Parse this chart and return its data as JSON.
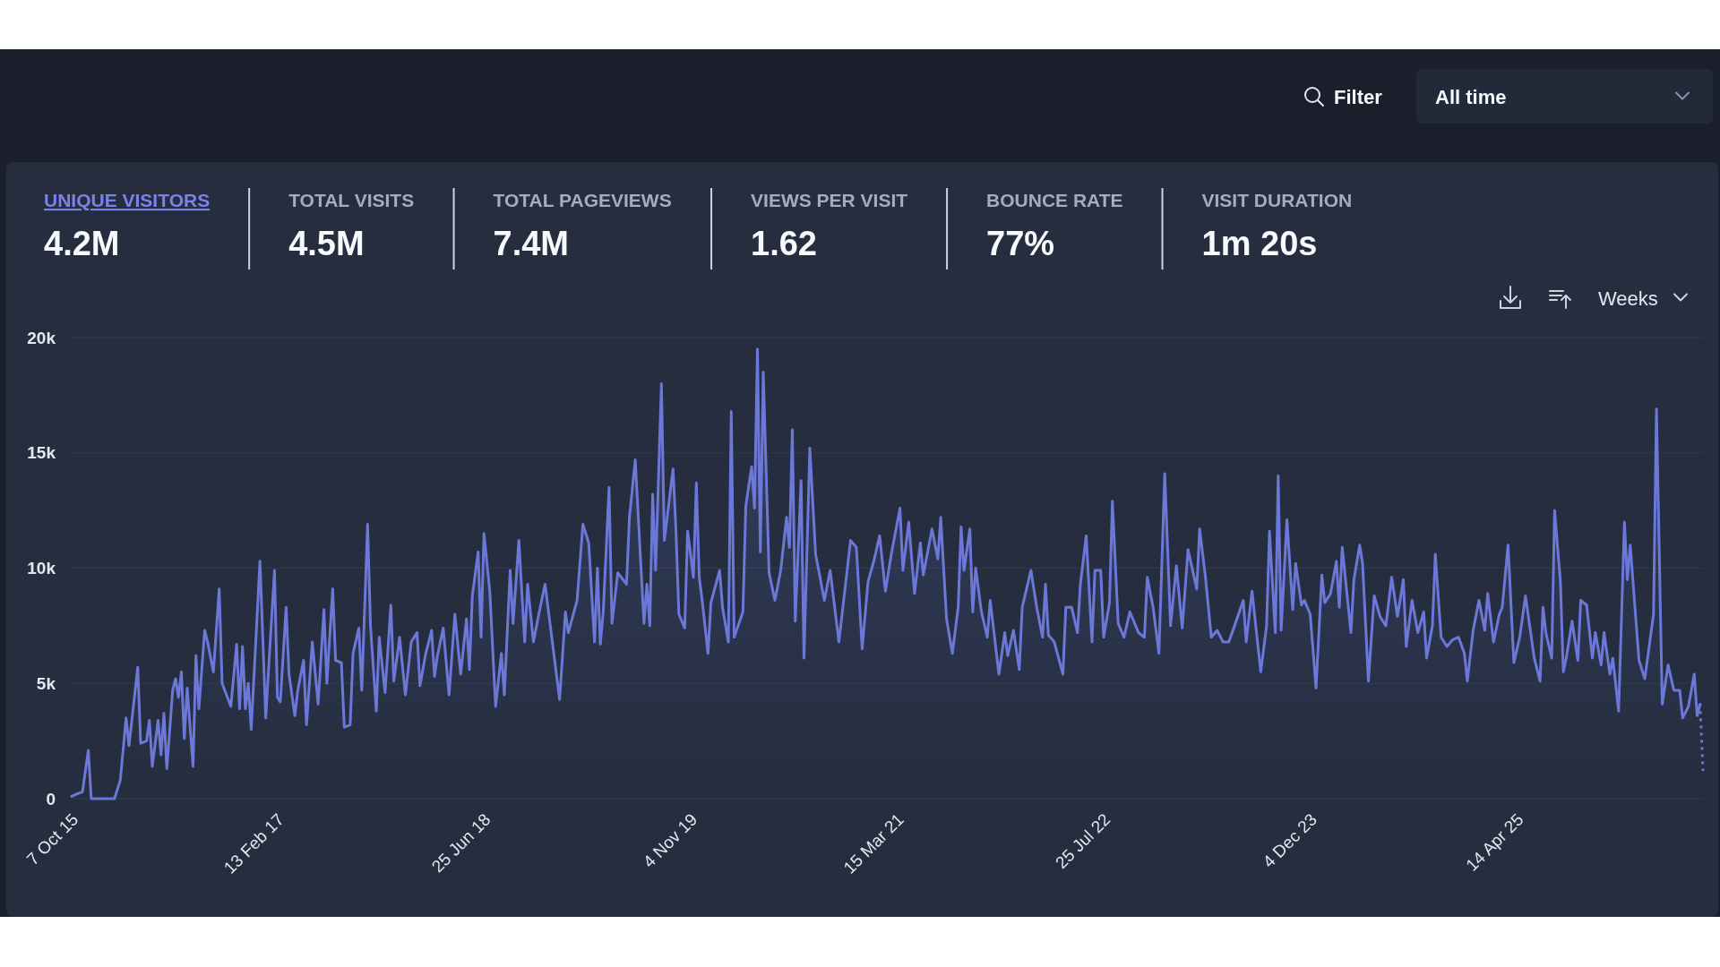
{
  "chart_data": [
    {
      "type": "other",
      "categories": [
        "UNIQUE VISITORS",
        "TOTAL VISITS",
        "TOTAL PAGEVIEWS",
        "VIEWS PER VISIT",
        "BOUNCE RATE",
        "VISIT DURATION"
      ],
      "value_labels": [
        "4.2M",
        "4.5M",
        "7.4M",
        "1.62",
        "77%",
        "1m 20s"
      ],
      "colors": [
        "#7b83eb",
        "#a0aec0",
        "#a0aec0",
        "#a0aec0",
        "#a0aec0",
        "#a0aec0"
      ],
      "annotations": [
        "Filter",
        "All time"
      ]
    },
    {
      "type": "area",
      "xlim": [
        "2015-10-07",
        "2026-07-06"
      ],
      "ylim": [
        0,
        20000
      ],
      "xticks": [
        {
          "value": "2015-10-07",
          "label": "7 Oct 15"
        },
        {
          "value": "2017-02-13",
          "label": "13 Feb 17"
        },
        {
          "value": "2018-06-25",
          "label": "25 Jun 18"
        },
        {
          "value": "2019-11-04",
          "label": "4 Nov 19"
        },
        {
          "value": "2021-03-15",
          "label": "15 Mar 21"
        },
        {
          "value": "2022-07-25",
          "label": "25 Jul 22"
        },
        {
          "value": "2023-12-04",
          "label": "4 Dec 23"
        },
        {
          "value": "2025-04-14",
          "label": "14 Apr 25"
        }
      ],
      "yticks": [
        0,
        {
          "value": 5000,
          "label": "5k"
        },
        {
          "value": 10000,
          "label": "10k"
        },
        {
          "value": 15000,
          "label": "15k"
        },
        {
          "value": 20000,
          "label": "20k"
        }
      ],
      "grid": "y",
      "annotations": [
        "Weeks"
      ],
      "series": [
        {
          "color": "#6b78d8",
          "x": [
            "2015-10-07",
            "2015-10-19",
            "2015-11-02",
            "2015-11-16",
            "2015-11-23",
            "2016-01-18",
            "2016-02-01",
            "2016-02-15",
            "2016-02-22",
            "2016-03-14",
            "2016-03-21",
            "2016-04-04",
            "2016-04-11",
            "2016-04-18",
            "2016-05-02",
            "2016-05-09",
            "2016-05-16",
            "2016-05-23",
            "2016-06-06",
            "2016-06-13",
            "2016-06-20",
            "2016-06-27",
            "2016-07-04",
            "2016-07-11",
            "2016-07-25",
            "2016-08-01",
            "2016-08-08",
            "2016-08-22",
            "2016-08-29",
            "2016-09-12",
            "2016-09-26",
            "2016-10-03",
            "2016-10-24",
            "2016-11-07",
            "2016-11-14",
            "2016-11-21",
            "2016-11-28",
            "2016-12-05",
            "2016-12-12",
            "2017-01-02",
            "2017-01-16",
            "2017-01-23",
            "2017-02-06",
            "2017-02-13",
            "2017-02-20",
            "2017-03-06",
            "2017-03-13",
            "2017-03-27",
            "2017-04-03",
            "2017-04-17",
            "2017-04-24",
            "2017-05-08",
            "2017-05-22",
            "2017-06-05",
            "2017-06-12",
            "2017-06-26",
            "2017-07-03",
            "2017-07-17",
            "2017-07-24",
            "2017-08-07",
            "2017-08-14",
            "2017-08-28",
            "2017-09-04",
            "2017-09-18",
            "2017-09-25",
            "2017-10-09",
            "2017-10-16",
            "2017-10-30",
            "2017-11-13",
            "2017-11-20",
            "2017-12-04",
            "2017-12-18",
            "2018-01-01",
            "2018-01-15",
            "2018-01-22",
            "2018-02-05",
            "2018-02-19",
            "2018-02-26",
            "2018-03-05",
            "2018-03-19",
            "2018-04-02",
            "2018-04-16",
            "2018-04-30",
            "2018-05-14",
            "2018-05-21",
            "2018-05-28",
            "2018-06-11",
            "2018-06-18",
            "2018-06-25",
            "2018-07-09",
            "2018-07-23",
            "2018-08-06",
            "2018-08-13",
            "2018-08-27",
            "2018-09-03",
            "2018-09-17",
            "2018-10-01",
            "2018-10-08",
            "2018-10-22",
            "2018-11-05",
            "2018-11-19",
            "2018-12-10",
            "2018-12-24",
            "2019-01-07",
            "2019-01-14",
            "2019-02-04",
            "2019-02-18",
            "2019-03-04",
            "2019-03-18",
            "2019-03-25",
            "2019-04-01",
            "2019-04-08",
            "2019-04-22",
            "2019-04-29",
            "2019-05-13",
            "2019-06-03",
            "2019-06-10",
            "2019-06-24",
            "2019-07-15",
            "2019-07-22",
            "2019-07-29",
            "2019-08-05",
            "2019-08-12",
            "2019-08-26",
            "2019-09-02",
            "2019-09-23",
            "2019-09-30",
            "2019-10-07",
            "2019-10-21",
            "2019-10-28",
            "2019-11-11",
            "2019-11-18",
            "2019-11-25",
            "2019-12-02",
            "2019-12-16",
            "2019-12-23",
            "2020-01-13",
            "2020-01-20",
            "2020-02-03",
            "2020-02-10",
            "2020-02-17",
            "2020-03-09",
            "2020-03-16",
            "2020-03-30",
            "2020-04-06",
            "2020-04-13",
            "2020-04-20",
            "2020-04-27",
            "2020-05-11",
            "2020-05-25",
            "2020-06-08",
            "2020-06-22",
            "2020-06-29",
            "2020-07-06",
            "2020-07-13",
            "2020-07-27",
            "2020-08-03",
            "2020-08-17",
            "2020-08-31",
            "2020-09-21",
            "2020-10-05",
            "2020-10-26",
            "2020-11-23",
            "2020-12-07",
            "2020-12-21",
            "2021-01-04",
            "2021-01-18",
            "2021-02-01",
            "2021-02-15",
            "2021-03-01",
            "2021-03-22",
            "2021-03-29",
            "2021-04-12",
            "2021-04-26",
            "2021-05-10",
            "2021-05-17",
            "2021-06-07",
            "2021-06-21",
            "2021-06-28",
            "2021-07-12",
            "2021-07-26",
            "2021-08-09",
            "2021-08-16",
            "2021-08-23",
            "2021-09-06",
            "2021-09-13",
            "2021-09-20",
            "2021-10-04",
            "2021-10-18",
            "2021-10-25",
            "2021-11-15",
            "2021-11-29",
            "2021-12-06",
            "2021-12-20",
            "2022-01-03",
            "2022-01-10",
            "2022-01-31",
            "2022-02-14",
            "2022-02-28",
            "2022-03-07",
            "2022-03-14",
            "2022-03-28",
            "2022-04-18",
            "2022-04-25",
            "2022-05-09",
            "2022-05-23",
            "2022-05-30",
            "2022-06-13",
            "2022-06-27",
            "2022-07-04",
            "2022-07-18",
            "2022-07-25",
            "2022-08-08",
            "2022-08-15",
            "2022-08-29",
            "2022-09-12",
            "2022-09-26",
            "2022-10-17",
            "2022-10-31",
            "2022-11-07",
            "2022-11-21",
            "2022-12-05",
            "2022-12-19",
            "2023-01-02",
            "2023-01-16",
            "2023-01-30",
            "2023-02-13",
            "2023-03-06",
            "2023-03-13",
            "2023-03-27",
            "2023-04-10",
            "2023-04-24",
            "2023-05-08",
            "2023-05-22",
            "2023-06-05",
            "2023-06-26",
            "2023-07-03",
            "2023-07-17",
            "2023-08-07",
            "2023-08-21",
            "2023-08-28",
            "2023-09-11",
            "2023-09-18",
            "2023-09-25",
            "2023-10-09",
            "2023-10-23",
            "2023-10-30",
            "2023-11-13",
            "2023-11-20",
            "2023-12-04",
            "2023-12-18",
            "2024-01-01",
            "2024-01-08",
            "2024-01-22",
            "2024-02-05",
            "2024-02-12",
            "2024-02-19",
            "2024-03-11",
            "2024-03-18",
            "2024-04-01",
            "2024-04-08",
            "2024-04-22",
            "2024-05-06",
            "2024-05-20",
            "2024-06-03",
            "2024-06-17",
            "2024-07-01",
            "2024-07-15",
            "2024-07-22",
            "2024-08-05",
            "2024-08-19",
            "2024-09-02",
            "2024-09-09",
            "2024-09-23",
            "2024-09-30",
            "2024-10-14",
            "2024-10-28",
            "2024-11-11",
            "2024-11-25",
            "2024-12-09",
            "2024-12-16",
            "2024-12-30",
            "2025-01-13",
            "2025-01-27",
            "2025-02-03",
            "2025-02-17",
            "2025-03-03",
            "2025-03-10",
            "2025-03-24",
            "2025-04-07",
            "2025-04-21",
            "2025-05-05",
            "2025-05-26",
            "2025-06-09",
            "2025-06-16",
            "2025-06-23",
            "2025-07-07",
            "2025-07-14",
            "2025-07-28",
            "2025-08-04",
            "2025-08-11",
            "2025-08-25",
            "2025-09-08",
            "2025-09-15",
            "2025-09-29",
            "2025-10-13",
            "2025-10-20",
            "2025-11-03",
            "2025-11-10",
            "2025-11-24",
            "2025-12-01",
            "2025-12-15",
            "2025-12-29",
            "2026-01-05",
            "2026-01-12",
            "2026-02-02",
            "2026-02-16",
            "2026-03-09",
            "2026-03-16",
            "2026-03-30",
            "2026-04-13",
            "2026-04-27",
            "2026-05-11",
            "2026-05-18",
            "2026-06-01",
            "2026-06-15",
            "2026-06-22",
            "2026-06-29"
          ],
          "values": [
            100,
            200,
            300,
            2100,
            0,
            0,
            800,
            3500,
            2300,
            5700,
            2400,
            2500,
            3400,
            1400,
            3400,
            1900,
            3700,
            1300,
            4700,
            5200,
            4400,
            5500,
            2600,
            4800,
            1400,
            6200,
            3900,
            7300,
            6800,
            5500,
            9100,
            5000,
            4000,
            6700,
            3900,
            6600,
            3900,
            5000,
            3000,
            10300,
            3500,
            5700,
            9900,
            4400,
            4200,
            8300,
            5400,
            3600,
            4700,
            6000,
            3200,
            6800,
            4100,
            8200,
            5000,
            9100,
            6000,
            5900,
            3100,
            3200,
            6300,
            7400,
            4700,
            11900,
            7500,
            3800,
            7000,
            4600,
            8400,
            5100,
            7000,
            4500,
            6800,
            7200,
            4900,
            6300,
            7300,
            5300,
            6200,
            7400,
            4500,
            8000,
            5400,
            7800,
            5600,
            8800,
            10700,
            7000,
            11500,
            9000,
            4000,
            6300,
            4500,
            9900,
            7600,
            11200,
            6800,
            9300,
            6800,
            8100,
            9300,
            6300,
            4300,
            8100,
            7200,
            8600,
            11900,
            11100,
            6800,
            10000,
            6700,
            8100,
            13500,
            7600,
            9800,
            9300,
            12200,
            14700,
            7600,
            9300,
            7500,
            13200,
            9900,
            18000,
            11200,
            14300,
            11600,
            8000,
            7400,
            11600,
            9600,
            13700,
            9600,
            8600,
            6300,
            8500,
            9900,
            8300,
            6800,
            16800,
            7000,
            8100,
            12700,
            14400,
            12600,
            19500,
            10700,
            18500,
            9800,
            8600,
            9900,
            12200,
            10900,
            16000,
            7700,
            13800,
            6100,
            15200,
            10600,
            8600,
            9900,
            6800,
            11200,
            10900,
            6500,
            9400,
            10300,
            11400,
            9000,
            10600,
            12600,
            9900,
            12000,
            8900,
            11100,
            9700,
            11700,
            10400,
            12200,
            7800,
            6300,
            8300,
            11800,
            9900,
            11700,
            8100,
            10000,
            8100,
            7000,
            8600,
            5400,
            7200,
            6200,
            7300,
            5600,
            8300,
            9900,
            8300,
            7000,
            9300,
            7100,
            6800,
            5400,
            8300,
            8300,
            7200,
            9300,
            11400,
            6800,
            9900,
            9900,
            7000,
            8500,
            12900,
            7600,
            7000,
            8100,
            7200,
            7000,
            9600,
            8300,
            6300,
            14100,
            7500,
            10100,
            7400,
            10800,
            9100,
            11700,
            9600,
            7000,
            7300,
            6800,
            6800,
            7500,
            8600,
            6800,
            9000,
            5500,
            7500,
            11600,
            7200,
            14000,
            7300,
            12100,
            8200,
            10200,
            8400,
            8600,
            8000,
            4800,
            9700,
            8500,
            8900,
            10300,
            8300,
            10900,
            7200,
            9500,
            11000,
            10200,
            5100,
            8800,
            7900,
            7500,
            9600,
            7900,
            9500,
            6600,
            8600,
            7200,
            8100,
            6100,
            7500,
            10600,
            7000,
            6600,
            6900,
            7000,
            6300,
            5100,
            7300,
            8600,
            7300,
            8900,
            6800,
            8000,
            8300,
            11000,
            5900,
            7000,
            8800,
            6100,
            5100,
            8300,
            7200,
            6100,
            12500,
            9400,
            5500,
            6100,
            7700,
            6000,
            8600,
            8400,
            6100,
            7200,
            5800,
            7200,
            5400,
            6100,
            3800,
            12000,
            9500,
            11000,
            6000,
            5200,
            8000,
            16900,
            4100,
            5800,
            4700,
            4700,
            3500,
            4000,
            5400,
            3600,
            4100
          ]
        },
        {
          "type": "line",
          "line_style": "dotted",
          "color": "#6b78d8",
          "x": [
            "2026-06-29",
            "2026-07-06"
          ],
          "values": [
            4100,
            1200
          ]
        }
      ]
    }
  ]
}
